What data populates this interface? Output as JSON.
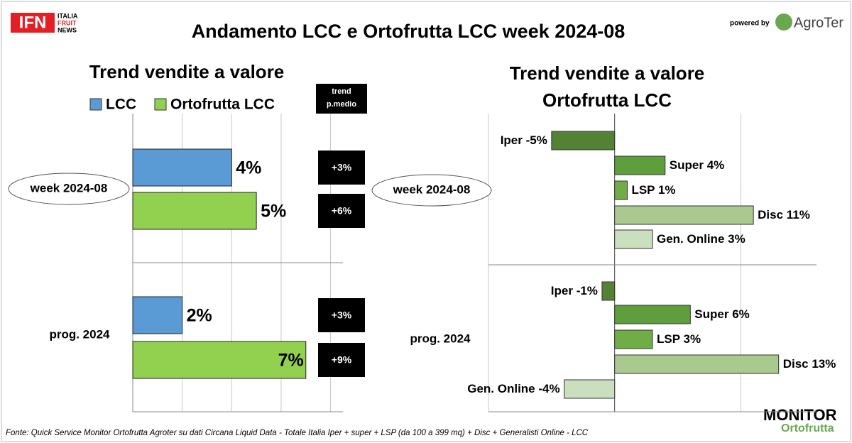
{
  "header": {
    "title": "Andamento LCC e Ortofrutta LCC week 2024-08",
    "logo": "IFN",
    "logo_lines": [
      "ITALIA",
      "FRUIT",
      "NEWS"
    ],
    "powered_by": "powered by",
    "sponsor": "AgroTer"
  },
  "chart_data": [
    {
      "type": "bar",
      "title": "Trend vendite a valore",
      "categories": [
        "week 2024-08",
        "prog. 2024"
      ],
      "series": [
        {
          "name": "LCC",
          "color": "#5b9bd5",
          "values": [
            4,
            2
          ],
          "value_labels": [
            "4%",
            "2%"
          ]
        },
        {
          "name": "Ortofrutta LCC",
          "color": "#92d050",
          "values": [
            5,
            7
          ],
          "value_labels": [
            "5%",
            "7%"
          ]
        }
      ],
      "trend": {
        "title": "trend p.medio",
        "values": [
          3,
          6,
          3,
          9
        ],
        "value_labels": [
          "+3%",
          "+6%",
          "+3%",
          "+9%"
        ]
      },
      "xlim": [
        0,
        8.5
      ],
      "xticks": [
        0,
        2,
        4,
        6,
        8
      ],
      "grid": true
    },
    {
      "type": "diverging_bar",
      "title": "Trend vendite a valore Ortofrutta LCC",
      "categories": [
        "week 2024-08",
        "prog. 2024"
      ],
      "channels": [
        "Iper",
        "Super",
        "LSP",
        "Disc",
        "Gen. Online"
      ],
      "colors": [
        "#548235",
        "#5f9e3c",
        "#70ad47",
        "#a9c98f",
        "#c9dfbd"
      ],
      "values": [
        [
          -5,
          4,
          1,
          11,
          3
        ],
        [
          -1,
          6,
          3,
          13,
          -4
        ]
      ],
      "value_labels": [
        [
          "-5%",
          "4%",
          "1%",
          "11%",
          "3%"
        ],
        [
          "-1%",
          "6%",
          "3%",
          "13%",
          "-4%"
        ]
      ],
      "xlim": [
        -10,
        16
      ],
      "xticks": [
        -10,
        0,
        10
      ],
      "grid": true
    }
  ],
  "footer": {
    "source": "Fonte: Quick Service Monitor Ortofrutta Agroter su dati Circana Liquid Data - Totale Italia Iper + super + LSP (da 100 a 399 mq) + Disc + Generalisti Online - LCC",
    "brand": "MONITOR",
    "brand_sub": "Ortofrutta"
  }
}
